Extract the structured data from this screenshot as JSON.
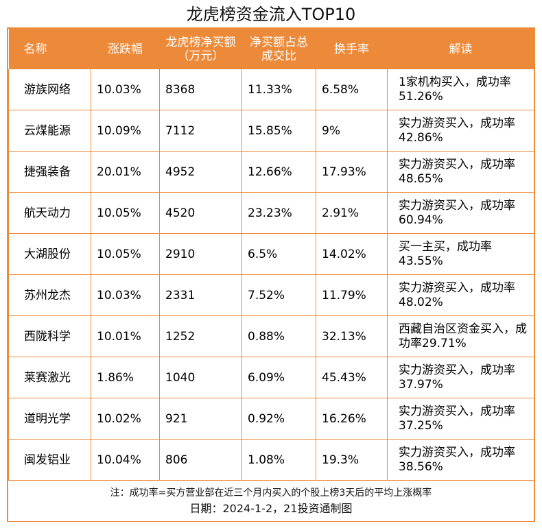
{
  "title": "龙虎榜资金流入TOP10",
  "headers": [
    "名称",
    "涨跌幅",
    "龙虎榜净买额（万元）",
    "净买额占总成交比",
    "换手率",
    "解读"
  ],
  "rows": [
    {
      "name": "游族网络",
      "change": "10.03%",
      "net_buy": "8368",
      "ratio": "11.33%",
      "turnover": "6.58%",
      "comment": "1家机构买入，成功率51.26%"
    },
    {
      "name": "云煤能源",
      "change": "10.09%",
      "net_buy": "7112",
      "ratio": "15.85%",
      "turnover": "9%",
      "comment": "实力游资买入，成功率42.86%"
    },
    {
      "name": "捷强装备",
      "change": "20.01%",
      "net_buy": "4952",
      "ratio": "12.66%",
      "turnover": "17.93%",
      "comment": "实力游资买入，成功率48.65%"
    },
    {
      "name": "航天动力",
      "change": "10.05%",
      "net_buy": "4520",
      "ratio": "23.23%",
      "turnover": "2.91%",
      "comment": "实力游资买入，成功率60.94%"
    },
    {
      "name": "大湖股份",
      "change": "10.05%",
      "net_buy": "2910",
      "ratio": "6.5%",
      "turnover": "14.02%",
      "comment": "买一主买，成功率43.55%"
    },
    {
      "name": "苏州龙杰",
      "change": "10.03%",
      "net_buy": "2331",
      "ratio": "7.52%",
      "turnover": "11.79%",
      "comment": "实力游资买入，成功率48.02%"
    },
    {
      "name": "西陇科学",
      "change": "10.01%",
      "net_buy": "1252",
      "ratio": "0.88%",
      "turnover": "32.13%",
      "comment": "西藏自治区资金买入，成功率29.71%"
    },
    {
      "name": "莱赛激光",
      "change": "1.86%",
      "net_buy": "1040",
      "ratio": "6.09%",
      "turnover": "45.43%",
      "comment": "实力游资买入，成功率37.97%"
    },
    {
      "name": "道明光学",
      "change": "10.02%",
      "net_buy": "921",
      "ratio": "0.92%",
      "turnover": "16.26%",
      "comment": "实力游资买入，成功率37.25%"
    },
    {
      "name": "闽发铝业",
      "change": "10.04%",
      "net_buy": "806",
      "ratio": "1.08%",
      "turnover": "19.3%",
      "comment": "实力游资买入，成功率38.56%"
    }
  ],
  "note": "注：成功率=买方营业部在近三个月内买入的个股上榜3天后的平均上涨概率",
  "date_line": "日期：2024-1-2，21投资通制图",
  "colors": {
    "accent": "#ec8a3a",
    "header_text": "#ffffff"
  }
}
